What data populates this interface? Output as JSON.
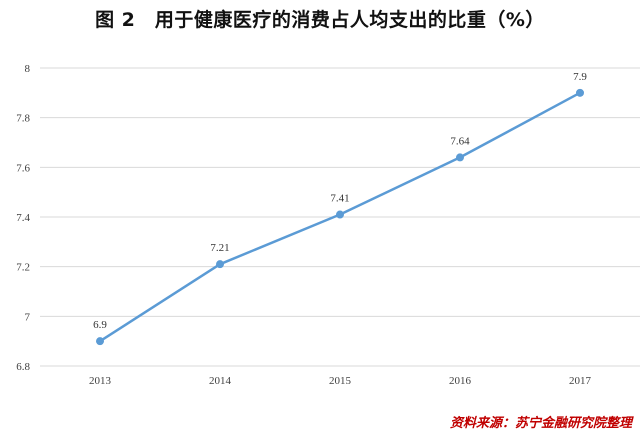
{
  "title": "图 2　用于健康医疗的消费占人均支出的比重（%）",
  "source": "资料来源：苏宁金融研究院整理",
  "colors": {
    "line": "#5b9bd5",
    "grid": "#d9d9d9",
    "source_text": "#c00000"
  },
  "chart_data": {
    "type": "line",
    "title": "图 2　用于健康医疗的消费占人均支出的比重（%）",
    "categories": [
      "2013",
      "2014",
      "2015",
      "2016",
      "2017"
    ],
    "series": [
      {
        "values": [
          6.9,
          7.21,
          7.41,
          7.64,
          7.9
        ],
        "labels": [
          "6.9",
          "7.21",
          "7.41",
          "7.64",
          "7.9"
        ]
      }
    ],
    "y_ticks": [
      "6.8",
      "7",
      "7.2",
      "7.4",
      "7.6",
      "7.8",
      "8"
    ],
    "ylim": [
      6.8,
      8
    ],
    "xlabel": "",
    "ylabel": "",
    "grid": true,
    "legend": "none"
  }
}
